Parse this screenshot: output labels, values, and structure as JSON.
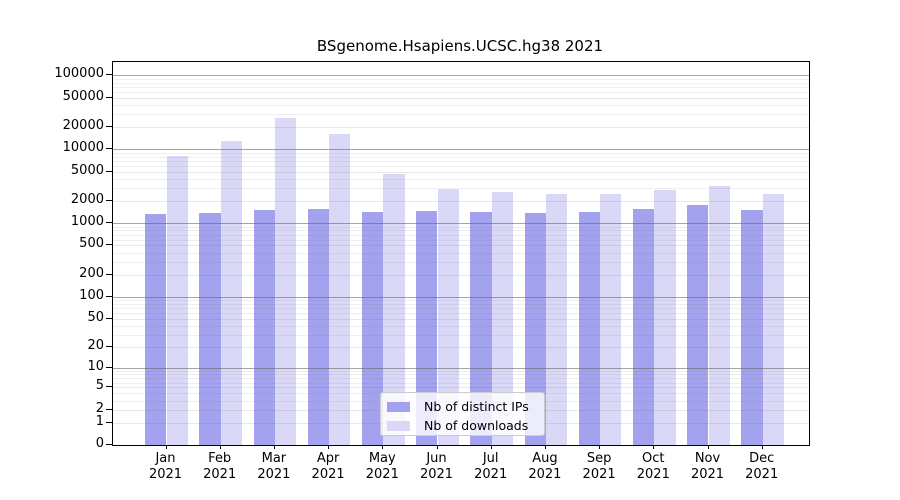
{
  "chart_data": {
    "type": "bar",
    "title": "BSgenome.Hsapiens.UCSC.hg38 2021",
    "categories": [
      "Jan 2021",
      "Feb 2021",
      "Mar 2021",
      "Apr 2021",
      "May 2021",
      "Jun 2021",
      "Jul 2021",
      "Aug 2021",
      "Sep 2021",
      "Oct 2021",
      "Nov 2021",
      "Dec 2021"
    ],
    "series": [
      {
        "name": "Nb of distinct IPs",
        "color": "#a2a2ee",
        "values": [
          1350,
          1390,
          1500,
          1580,
          1440,
          1480,
          1420,
          1360,
          1420,
          1580,
          1750,
          1510
        ]
      },
      {
        "name": "Nb of downloads",
        "color": "#d9d9f7",
        "values": [
          8200,
          12900,
          26600,
          16300,
          4600,
          2880,
          2670,
          2470,
          2490,
          2850,
          3200,
          2470
        ]
      }
    ],
    "y_axis": {
      "scale": "log10(value+1)",
      "tick_labels": [
        100000,
        50000,
        20000,
        10000,
        5000,
        2000,
        1000,
        500,
        200,
        100,
        50,
        20,
        10,
        5,
        2,
        1,
        0
      ],
      "range": [
        0,
        150000
      ],
      "grid": true
    },
    "x_axis": {
      "label_line_2": "2021"
    },
    "legend": {
      "position": "inside-bottom-center"
    },
    "colors": {
      "background": "#ffffff",
      "axis": "#000000",
      "grid_decade": "#9e9e9e",
      "grid_labeled": "#e7e7e7",
      "grid_minor": "#f0f0f0"
    }
  }
}
